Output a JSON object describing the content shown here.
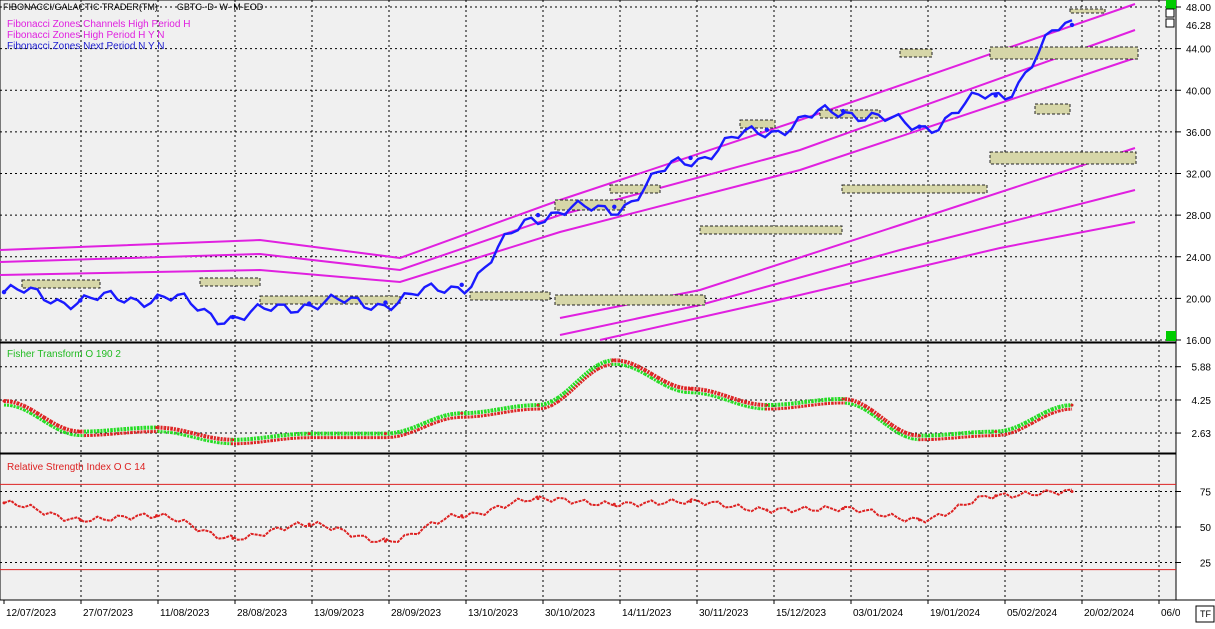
{
  "header": {
    "study_name": "FIBONACCI/GALACTIC TRADER(TM)",
    "symbol_info": "GBTC- D- W- M-EOD",
    "legend": [
      {
        "text": "Fibonacci Zones Channels High Period H",
        "color": "#e020e0"
      },
      {
        "text": "Fibonacci Zones High Period H Y N",
        "color": "#e020e0"
      },
      {
        "text": "Fibonacci Zones Next Period N Y N",
        "color": "#2020d0"
      }
    ]
  },
  "colors": {
    "background": "#ffffff",
    "panel_bg": "#f0f0f0",
    "grid": "#000000",
    "price": "#1a1aff",
    "channel": "#e020e0",
    "fisher_up": "#22dd22",
    "fisher_down": "#dd2222",
    "rsi": "#dd2222",
    "rsi_level": "#dd2222",
    "marker_green": "#00cc00"
  },
  "x_axis": {
    "date_labels": [
      "12/07/2023",
      "27/07/2023",
      "11/08/2023",
      "28/08/2023",
      "13/09/2023",
      "28/09/2023",
      "13/10/2023",
      "30/10/2023",
      "14/11/2023",
      "30/11/2023",
      "15/12/2023",
      "03/01/2024",
      "19/01/2024",
      "05/02/2024",
      "20/02/2024",
      "06/0"
    ],
    "corner_label": "TF"
  },
  "chart_data": [
    {
      "type": "line",
      "panel": "price",
      "title": "FIBONACCI/GALACTIC TRADER(TM)",
      "x": [
        "12/07/2023",
        "27/07/2023",
        "11/08/2023",
        "28/08/2023",
        "13/09/2023",
        "28/09/2023",
        "13/10/2023",
        "30/10/2023",
        "14/11/2023",
        "30/11/2023",
        "15/12/2023",
        "03/01/2024",
        "19/01/2024",
        "05/02/2024",
        "20/02/2024"
      ],
      "series": [
        {
          "name": "",
          "values": [
            20.6,
            19.8,
            20.1,
            18.2,
            19.5,
            19.6,
            21.3,
            28.0,
            28.8,
            33.5,
            36.2,
            38.0,
            36.5,
            39.5,
            46.28
          ]
        }
      ],
      "last_value": "46.28",
      "y_ticks": [
        "48.00",
        "44.00",
        "40.00",
        "36.00",
        "32.00",
        "28.00",
        "24.00",
        "20.00",
        "16.00"
      ],
      "ylim": [
        16,
        48
      ],
      "grid": true
    },
    {
      "type": "line",
      "panel": "fisher",
      "title": "Fisher Transform O 190 2",
      "x": [
        "12/07/2023",
        "27/07/2023",
        "11/08/2023",
        "28/08/2023",
        "13/09/2023",
        "28/09/2023",
        "13/10/2023",
        "30/10/2023",
        "14/11/2023",
        "30/11/2023",
        "15/12/2023",
        "03/01/2024",
        "19/01/2024",
        "05/02/2024",
        "20/02/2024"
      ],
      "series": [
        {
          "name": "",
          "values": [
            4.2,
            2.7,
            2.9,
            2.3,
            2.6,
            2.6,
            3.6,
            4.0,
            6.2,
            4.8,
            4.0,
            4.3,
            2.5,
            2.7,
            4.0
          ]
        }
      ],
      "y_ticks": [
        "5.88",
        "4.25",
        "2.63"
      ],
      "ylim": [
        1.8,
        6.6
      ],
      "grid": true
    },
    {
      "type": "line",
      "panel": "rsi",
      "title": "Relative Strength Index O C 14",
      "x": [
        "12/07/2023",
        "27/07/2023",
        "11/08/2023",
        "28/08/2023",
        "13/09/2023",
        "28/09/2023",
        "13/10/2023",
        "30/10/2023",
        "14/11/2023",
        "30/11/2023",
        "15/12/2023",
        "03/01/2024",
        "19/01/2024",
        "05/02/2024",
        "20/02/2024"
      ],
      "series": [
        {
          "name": "",
          "values": [
            67,
            55,
            58,
            42,
            52,
            40,
            58,
            70,
            66,
            68,
            62,
            63,
            55,
            72,
            75
          ]
        }
      ],
      "levels": [
        80,
        20
      ],
      "y_ticks": [
        "75",
        "50",
        "25"
      ],
      "ylim": [
        0,
        100
      ],
      "grid": true
    }
  ]
}
